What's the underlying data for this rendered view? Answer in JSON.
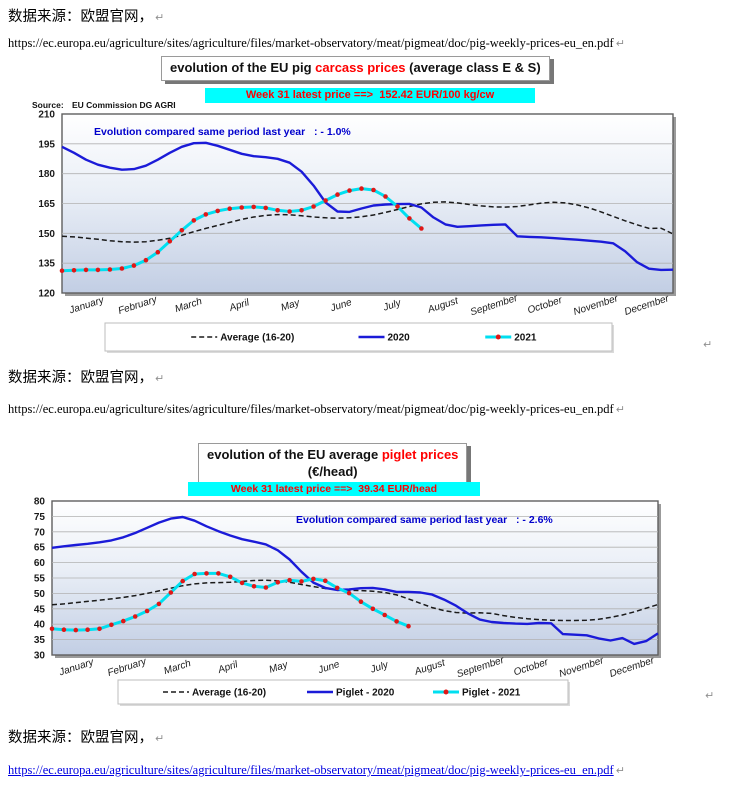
{
  "doc": {
    "source_text": "数据来源：欧盟官网，",
    "url": "https://ec.europa.eu/agriculture/sites/agriculture/files/market-observatory/meat/pigmeat/doc/pig-weekly-prices-eu_en.pdf",
    "mark": "↵"
  },
  "chart_data": [
    {
      "type": "line",
      "title": {
        "black1": "evolution of the EU pig ",
        "red": "carcass prices",
        "black2": " (average class E & S)"
      },
      "banner": "Week 31 latest price ==>  152.42 EUR/100 kg/cw",
      "source_label": "Source:",
      "source_value": "EU Commission DG AGRI",
      "annotation": "Evolution compared same period last year   : - 1.0%",
      "ylabel": "EUR/100 kg/cw",
      "ylim": [
        120,
        210
      ],
      "ystep": 15,
      "weeks": 52,
      "grid": true,
      "legend_position": "bottom",
      "months": [
        "January",
        "February",
        "March",
        "April",
        "May",
        "June",
        "July",
        "August",
        "September",
        "October",
        "November",
        "December"
      ],
      "series": [
        {
          "name": "Average (16-20)",
          "style": "dashed-black",
          "values": [
            148.5,
            148.2,
            147.6,
            147,
            146.3,
            145.8,
            145.6,
            145.8,
            146.5,
            147.5,
            149,
            150.8,
            152.5,
            154,
            155.5,
            157,
            158.2,
            159,
            159.4,
            159.3,
            158.8,
            158.2,
            157.8,
            157.6,
            157.8,
            158.3,
            159.2,
            160.5,
            162,
            163.5,
            164.8,
            165.6,
            165.8,
            165.3,
            164.5,
            163.8,
            163.3,
            163.2,
            163.5,
            164.3,
            165.2,
            165.6,
            165.3,
            164.3,
            162.8,
            160.8,
            158.5,
            156.3,
            154.3,
            152.5,
            152.6,
            149.7
          ]
        },
        {
          "name": "2020",
          "style": "solid-blue",
          "values": [
            193.5,
            190.5,
            187,
            184.5,
            183,
            182,
            182.3,
            184,
            187,
            190.5,
            193.5,
            195.3,
            195.5,
            194,
            192,
            190,
            188.8,
            188.3,
            187.5,
            185.5,
            181,
            174,
            165.5,
            161,
            160.8,
            162.5,
            164,
            164.5,
            164.7,
            164.8,
            163,
            158,
            154.5,
            153.3,
            153.6,
            154,
            154.3,
            154.5,
            148.5,
            148.2,
            148,
            147.6,
            147.2,
            146.8,
            146.3,
            145.8,
            145,
            141,
            135.5,
            132.2,
            131.6,
            131.7
          ]
        },
        {
          "name": "2021",
          "style": "cyan-dots",
          "values": [
            131.2,
            131.4,
            131.6,
            131.6,
            131.8,
            132.3,
            133.8,
            136.5,
            140.5,
            146,
            151.5,
            156.5,
            159.5,
            161.3,
            162.4,
            163,
            163.3,
            162.8,
            161.6,
            161,
            161.6,
            163.5,
            166.5,
            169.5,
            171.5,
            172.5,
            171.8,
            168.5,
            163.5,
            157.5,
            152.42
          ]
        }
      ],
      "colors": {
        "average": "#1a1a1a",
        "blue": "#1b1bd8",
        "cyan": "#00dff0",
        "dot": "#e01818",
        "banner_bg": "#00ffff",
        "banner_text": "#ff0000",
        "annotation": "#0000cc",
        "title_red": "#ff0000"
      }
    },
    {
      "type": "line",
      "title": {
        "black1": "evolution of the EU average ",
        "red": "piglet prices",
        "black2": "",
        "line2": "(€/head)"
      },
      "banner": "Week 31 latest price ==>  39.34 EUR/head",
      "annotation": "Evolution compared same period last year   : - 2.6%",
      "ylabel": "EUR/head",
      "ylim": [
        30,
        80
      ],
      "ystep": 5,
      "weeks": 52,
      "grid": true,
      "legend_position": "bottom",
      "months": [
        "January",
        "February",
        "March",
        "April",
        "May",
        "June",
        "July",
        "August",
        "September",
        "October",
        "November",
        "December"
      ],
      "series": [
        {
          "name": "Average (16-20)",
          "style": "dashed-black",
          "values": [
            46.3,
            46.6,
            47,
            47.4,
            47.8,
            48.2,
            48.7,
            49.3,
            50,
            50.8,
            51.7,
            52.5,
            53.1,
            53.4,
            53.5,
            53.6,
            53.9,
            54.2,
            54.3,
            54.1,
            53.6,
            52.9,
            52.2,
            51.6,
            51.2,
            51,
            50.9,
            50.7,
            50.3,
            49.5,
            48.2,
            46.8,
            45.4,
            44.4,
            43.8,
            43.6,
            43.7,
            43.5,
            42.8,
            42.2,
            41.8,
            41.5,
            41.3,
            41.2,
            41.2,
            41.3,
            41.6,
            42.2,
            43,
            44,
            45.2,
            46.4
          ]
        },
        {
          "name": "Piglet - 2020",
          "style": "solid-blue",
          "values": [
            64.8,
            65.3,
            65.7,
            66.1,
            66.6,
            67.2,
            68.2,
            69.6,
            71.3,
            73,
            74.3,
            74.8,
            73.6,
            71.8,
            70.2,
            68.8,
            67.6,
            66.8,
            65.9,
            64,
            61,
            57,
            53.5,
            51.8,
            51.1,
            51.3,
            51.7,
            51.8,
            51.3,
            50.5,
            50.5,
            50.3,
            49.6,
            48,
            46,
            43.5,
            41.5,
            40.7,
            40.4,
            40.2,
            40.1,
            40.4,
            40.3,
            36.8,
            36.6,
            36.4,
            35.4,
            34.7,
            35.5,
            33.6,
            34.5,
            37
          ]
        },
        {
          "name": "Piglet - 2021",
          "style": "cyan-dots",
          "values": [
            38.5,
            38.2,
            38.1,
            38.2,
            38.5,
            39.8,
            41,
            42.5,
            44.3,
            46.6,
            50.3,
            54,
            56.3,
            56.5,
            56.5,
            55.4,
            53.4,
            52.3,
            51.9,
            53.6,
            54.3,
            53.9,
            54.7,
            54.1,
            51.8,
            50.1,
            47.3,
            45,
            43,
            40.9,
            39.34
          ]
        }
      ],
      "colors": {
        "average": "#1a1a1a",
        "blue": "#1b1bd8",
        "cyan": "#00dff0",
        "dot": "#e01818",
        "banner_bg": "#00ffff",
        "banner_text": "#ff0000",
        "annotation": "#0000cc",
        "title_red": "#ff0000"
      }
    }
  ]
}
